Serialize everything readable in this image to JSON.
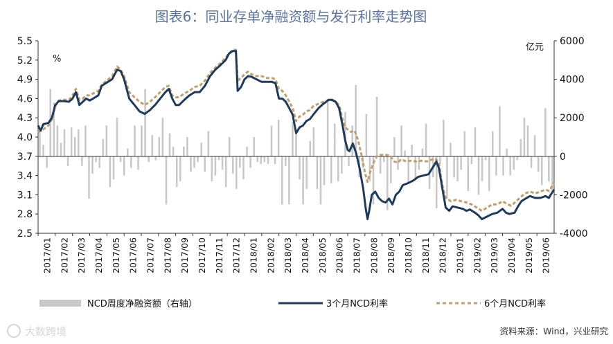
{
  "title": "图表6：同业存单净融资额与发行利率走势图",
  "left_unit": "%",
  "right_unit": "亿元",
  "source": "资料来源：Wind，兴业研究",
  "watermark": "大数跨境",
  "colors": {
    "title": "#5a73a3",
    "bars": "#c8c8c8",
    "line3m": "#1f3b5c",
    "line6m": "#c2a06b"
  },
  "chart_data": {
    "type": "bar+line",
    "title": "图表6：同业存单净融资额与发行利率走势图",
    "y_left_lim": [
      2.5,
      5.5
    ],
    "y_left_ticks": [
      "2.5",
      "2.8",
      "3.1",
      "3.4",
      "3.7",
      "4.0",
      "4.3",
      "4.6",
      "4.9",
      "5.2",
      "5.5"
    ],
    "y_right_lim": [
      -4000,
      6000
    ],
    "y_right_ticks": [
      "-4000",
      "-2000",
      "0",
      "2000",
      "4000",
      "6000"
    ],
    "x_ticks": [
      "2017/01",
      "2017/02",
      "2017/03",
      "2017/04",
      "2017/05",
      "2017/06",
      "2017/07",
      "2017/08",
      "2017/09",
      "2017/10",
      "2017/11",
      "2017/12",
      "2018/01",
      "2018/02",
      "2018/03",
      "2018/04",
      "2018/05",
      "2018/06",
      "2018/07",
      "2018/08",
      "2018/09",
      "2018/10",
      "2018/11",
      "2018/12",
      "2019/01",
      "2019/02",
      "2019/03",
      "2019/04",
      "2019/05",
      "2019/06"
    ],
    "legend": [
      "NCD周度净融资额（右轴）",
      "3个月NCD利率",
      "6个月NCD利率"
    ],
    "series": [
      {
        "name": "NCD周度净融资额（右轴）",
        "axis": "right",
        "kind": "bar",
        "values": [
          1200,
          600,
          -600,
          3500,
          2800,
          1600,
          700,
          1400,
          -500,
          1500,
          1000,
          1400,
          -500,
          1600,
          -2200,
          -900,
          -300,
          -600,
          900,
          1600,
          -1600,
          -1200,
          2000,
          -300,
          -1000,
          400,
          -600,
          1600,
          -700,
          1600,
          3500,
          -300,
          1100,
          -200,
          1000,
          2000,
          -2500,
          1200,
          500,
          -1600,
          -1300,
          500,
          1000,
          -800,
          -600,
          -300,
          700,
          -800,
          1300,
          -1300,
          -1000,
          -200,
          -700,
          -1600,
          1000,
          -900,
          -1700,
          -600,
          -1200,
          500,
          -600,
          1000,
          -300,
          -400,
          -300,
          -400,
          1600,
          -400,
          1900,
          -2500,
          -500,
          -2500,
          1800,
          1400,
          -1200,
          -2500,
          -1700,
          800,
          1500,
          -1700,
          -2500,
          -1500,
          3000,
          -1400,
          1700,
          -1300,
          -900,
          2300,
          -500,
          1600,
          3700,
          -1100,
          -600,
          2200,
          -1300,
          -2500,
          3100,
          -900,
          -300,
          -2800,
          -1400,
          1000,
          -700,
          1600,
          300,
          -1400,
          600,
          -1200,
          -700,
          400,
          1700,
          -1700,
          -1100,
          -2700,
          -400,
          1900,
          -2200,
          700,
          -1100,
          -1300,
          -700,
          1300,
          -1800,
          -400,
          1500,
          -2000,
          -1300,
          -200,
          -1800,
          1300,
          -1000,
          2600,
          -1000,
          400,
          -1000,
          -700,
          -200,
          900,
          2000,
          1600,
          -600,
          1100,
          -800,
          -1500,
          2500,
          -1300,
          -1800,
          -500,
          1400,
          400,
          -1600,
          2200,
          -2000,
          -900,
          2700,
          -1200,
          -2800,
          -1200,
          1600,
          -700,
          -1800,
          -900,
          800,
          2400,
          -700,
          -1000,
          1700,
          -600,
          1300,
          -1600,
          2000,
          -1100,
          2700,
          -900,
          300,
          -200
        ],
        "weeks_per_tick": 4.9
      },
      {
        "name": "3个月NCD利率",
        "axis": "left",
        "kind": "line",
        "points": [
          [
            0,
            4.18
          ],
          [
            0.15,
            4.1
          ],
          [
            0.3,
            4.2
          ],
          [
            0.6,
            4.22
          ],
          [
            0.8,
            4.3
          ],
          [
            1.0,
            4.5
          ],
          [
            1.2,
            4.56
          ],
          [
            1.5,
            4.56
          ],
          [
            1.8,
            4.55
          ],
          [
            2.0,
            4.6
          ],
          [
            2.2,
            4.7
          ],
          [
            2.4,
            4.5
          ],
          [
            2.6,
            4.55
          ],
          [
            2.8,
            4.6
          ],
          [
            3.0,
            4.57
          ],
          [
            3.2,
            4.6
          ],
          [
            3.5,
            4.65
          ],
          [
            3.7,
            4.8
          ],
          [
            4.0,
            4.85
          ],
          [
            4.3,
            4.9
          ],
          [
            4.6,
            5.05
          ],
          [
            4.8,
            5.03
          ],
          [
            5.0,
            4.9
          ],
          [
            5.3,
            4.6
          ],
          [
            5.6,
            4.5
          ],
          [
            5.9,
            4.4
          ],
          [
            6.2,
            4.36
          ],
          [
            6.5,
            4.42
          ],
          [
            6.8,
            4.5
          ],
          [
            7.1,
            4.6
          ],
          [
            7.4,
            4.7
          ],
          [
            7.6,
            4.75
          ],
          [
            7.8,
            4.6
          ],
          [
            8.0,
            4.5
          ],
          [
            8.2,
            4.5
          ],
          [
            8.5,
            4.58
          ],
          [
            8.8,
            4.65
          ],
          [
            9.1,
            4.7
          ],
          [
            9.4,
            4.7
          ],
          [
            9.7,
            4.8
          ],
          [
            10.0,
            4.95
          ],
          [
            10.3,
            5.05
          ],
          [
            10.6,
            5.12
          ],
          [
            10.9,
            5.2
          ],
          [
            11.1,
            5.3
          ],
          [
            11.3,
            5.34
          ],
          [
            11.5,
            5.34
          ],
          [
            11.6,
            4.72
          ],
          [
            11.8,
            4.78
          ],
          [
            12.0,
            4.9
          ],
          [
            12.2,
            4.95
          ],
          [
            12.4,
            4.94
          ],
          [
            12.7,
            4.9
          ],
          [
            13.0,
            4.86
          ],
          [
            13.3,
            4.86
          ],
          [
            13.6,
            4.86
          ],
          [
            13.8,
            4.84
          ],
          [
            14.0,
            4.6
          ],
          [
            14.2,
            4.6
          ],
          [
            14.4,
            4.55
          ],
          [
            14.6,
            4.45
          ],
          [
            14.8,
            4.35
          ],
          [
            15.0,
            4.06
          ],
          [
            15.2,
            4.15
          ],
          [
            15.4,
            4.18
          ],
          [
            15.6,
            4.25
          ],
          [
            15.8,
            4.28
          ],
          [
            16.0,
            4.35
          ],
          [
            16.3,
            4.45
          ],
          [
            16.6,
            4.52
          ],
          [
            16.9,
            4.58
          ],
          [
            17.1,
            4.58
          ],
          [
            17.3,
            4.55
          ],
          [
            17.5,
            4.45
          ],
          [
            17.7,
            4.18
          ],
          [
            17.85,
            3.95
          ],
          [
            18.0,
            3.8
          ],
          [
            18.1,
            3.78
          ],
          [
            18.3,
            3.9
          ],
          [
            18.5,
            3.74
          ],
          [
            18.7,
            3.5
          ],
          [
            18.9,
            3.2
          ],
          [
            19.05,
            2.88
          ],
          [
            19.15,
            2.72
          ],
          [
            19.25,
            2.85
          ],
          [
            19.4,
            3.1
          ],
          [
            19.6,
            3.15
          ],
          [
            19.8,
            3.05
          ],
          [
            20.0,
            3.0
          ],
          [
            20.2,
            2.98
          ],
          [
            20.4,
            3.04
          ],
          [
            20.6,
            2.95
          ],
          [
            20.8,
            3.1
          ],
          [
            21.0,
            3.15
          ],
          [
            21.2,
            3.25
          ],
          [
            21.5,
            3.28
          ],
          [
            21.8,
            3.32
          ],
          [
            22.1,
            3.38
          ],
          [
            22.4,
            3.4
          ],
          [
            22.7,
            3.42
          ],
          [
            23.0,
            3.55
          ],
          [
            23.15,
            3.62
          ],
          [
            23.3,
            3.52
          ],
          [
            23.5,
            3.2
          ],
          [
            23.7,
            2.9
          ],
          [
            23.9,
            2.85
          ],
          [
            24.1,
            2.92
          ],
          [
            24.4,
            2.9
          ],
          [
            24.7,
            2.88
          ],
          [
            24.9,
            2.85
          ],
          [
            25.1,
            2.87
          ],
          [
            25.4,
            2.82
          ],
          [
            25.6,
            2.78
          ],
          [
            25.8,
            2.72
          ],
          [
            26.1,
            2.76
          ],
          [
            26.4,
            2.8
          ],
          [
            26.7,
            2.82
          ],
          [
            27.0,
            2.88
          ],
          [
            27.2,
            2.82
          ],
          [
            27.4,
            2.8
          ],
          [
            27.7,
            2.82
          ],
          [
            27.9,
            2.92
          ],
          [
            28.1,
            3.0
          ],
          [
            28.4,
            3.05
          ],
          [
            28.6,
            3.08
          ],
          [
            28.9,
            3.05
          ],
          [
            29.2,
            3.05
          ],
          [
            29.5,
            3.08
          ],
          [
            29.7,
            3.05
          ],
          [
            29.8,
            3.1
          ],
          [
            29.9,
            3.14
          ],
          [
            30.0,
            3.18
          ]
        ]
      },
      {
        "name": "6个月NCD利率",
        "axis": "left",
        "kind": "line",
        "points": [
          [
            0,
            4.07
          ],
          [
            0.3,
            4.12
          ],
          [
            0.6,
            4.18
          ],
          [
            0.8,
            4.28
          ],
          [
            1.0,
            4.48
          ],
          [
            1.2,
            4.57
          ],
          [
            1.5,
            4.58
          ],
          [
            1.8,
            4.58
          ],
          [
            2.0,
            4.65
          ],
          [
            2.2,
            4.75
          ],
          [
            2.4,
            4.58
          ],
          [
            2.6,
            4.6
          ],
          [
            2.8,
            4.65
          ],
          [
            3.0,
            4.65
          ],
          [
            3.2,
            4.68
          ],
          [
            3.5,
            4.72
          ],
          [
            3.7,
            4.82
          ],
          [
            4.0,
            4.88
          ],
          [
            4.3,
            4.95
          ],
          [
            4.6,
            5.1
          ],
          [
            4.8,
            5.05
          ],
          [
            5.0,
            4.95
          ],
          [
            5.3,
            4.7
          ],
          [
            5.6,
            4.62
          ],
          [
            5.9,
            4.55
          ],
          [
            6.2,
            4.5
          ],
          [
            6.5,
            4.55
          ],
          [
            6.8,
            4.62
          ],
          [
            7.1,
            4.7
          ],
          [
            7.4,
            4.78
          ],
          [
            7.6,
            4.8
          ],
          [
            7.8,
            4.65
          ],
          [
            8.0,
            4.62
          ],
          [
            8.2,
            4.62
          ],
          [
            8.5,
            4.68
          ],
          [
            8.8,
            4.72
          ],
          [
            9.1,
            4.78
          ],
          [
            9.4,
            4.8
          ],
          [
            9.7,
            4.88
          ],
          [
            10.0,
            5.0
          ],
          [
            10.3,
            5.08
          ],
          [
            10.6,
            5.15
          ],
          [
            10.9,
            5.24
          ],
          [
            11.1,
            5.3
          ],
          [
            11.3,
            5.36
          ],
          [
            11.5,
            5.36
          ],
          [
            11.6,
            4.88
          ],
          [
            11.8,
            4.92
          ],
          [
            12.0,
            4.98
          ],
          [
            12.2,
            5.02
          ],
          [
            12.4,
            4.98
          ],
          [
            12.7,
            4.95
          ],
          [
            13.0,
            4.95
          ],
          [
            13.3,
            4.92
          ],
          [
            13.6,
            4.92
          ],
          [
            13.8,
            4.9
          ],
          [
            14.0,
            4.75
          ],
          [
            14.2,
            4.72
          ],
          [
            14.4,
            4.65
          ],
          [
            14.6,
            4.55
          ],
          [
            14.8,
            4.45
          ],
          [
            15.0,
            4.25
          ],
          [
            15.2,
            4.32
          ],
          [
            15.4,
            4.35
          ],
          [
            15.6,
            4.4
          ],
          [
            15.8,
            4.42
          ],
          [
            16.0,
            4.48
          ],
          [
            16.3,
            4.52
          ],
          [
            16.6,
            4.55
          ],
          [
            16.9,
            4.58
          ],
          [
            17.1,
            4.57
          ],
          [
            17.3,
            4.55
          ],
          [
            17.5,
            4.5
          ],
          [
            17.7,
            4.28
          ],
          [
            17.85,
            4.15
          ],
          [
            18.0,
            4.12
          ],
          [
            18.2,
            4.08
          ],
          [
            18.4,
            4.1
          ],
          [
            18.6,
            3.95
          ],
          [
            18.8,
            3.72
          ],
          [
            19.0,
            3.45
          ],
          [
            19.15,
            3.3
          ],
          [
            19.3,
            3.45
          ],
          [
            19.5,
            3.6
          ],
          [
            19.7,
            3.7
          ],
          [
            19.9,
            3.72
          ],
          [
            20.1,
            3.72
          ],
          [
            20.3,
            3.72
          ],
          [
            20.5,
            3.7
          ],
          [
            20.7,
            3.62
          ],
          [
            20.9,
            3.6
          ],
          [
            21.1,
            3.65
          ],
          [
            21.4,
            3.62
          ],
          [
            21.7,
            3.63
          ],
          [
            22.0,
            3.62
          ],
          [
            22.3,
            3.63
          ],
          [
            22.6,
            3.62
          ],
          [
            22.9,
            3.65
          ],
          [
            23.1,
            3.66
          ],
          [
            23.3,
            3.6
          ],
          [
            23.5,
            3.25
          ],
          [
            23.7,
            3.05
          ],
          [
            24.0,
            3.0
          ],
          [
            24.3,
            3.02
          ],
          [
            24.6,
            3.0
          ],
          [
            24.9,
            2.98
          ],
          [
            25.2,
            2.95
          ],
          [
            25.5,
            2.9
          ],
          [
            25.8,
            2.85
          ],
          [
            26.1,
            2.9
          ],
          [
            26.4,
            2.95
          ],
          [
            26.7,
            2.95
          ],
          [
            27.0,
            3.0
          ],
          [
            27.3,
            2.95
          ],
          [
            27.5,
            2.93
          ],
          [
            27.8,
            3.0
          ],
          [
            28.0,
            3.05
          ],
          [
            28.3,
            3.12
          ],
          [
            28.6,
            3.15
          ],
          [
            28.9,
            3.12
          ],
          [
            29.2,
            3.15
          ],
          [
            29.5,
            3.18
          ],
          [
            29.7,
            3.16
          ],
          [
            29.85,
            3.22
          ],
          [
            30.0,
            3.3
          ]
        ]
      }
    ]
  }
}
